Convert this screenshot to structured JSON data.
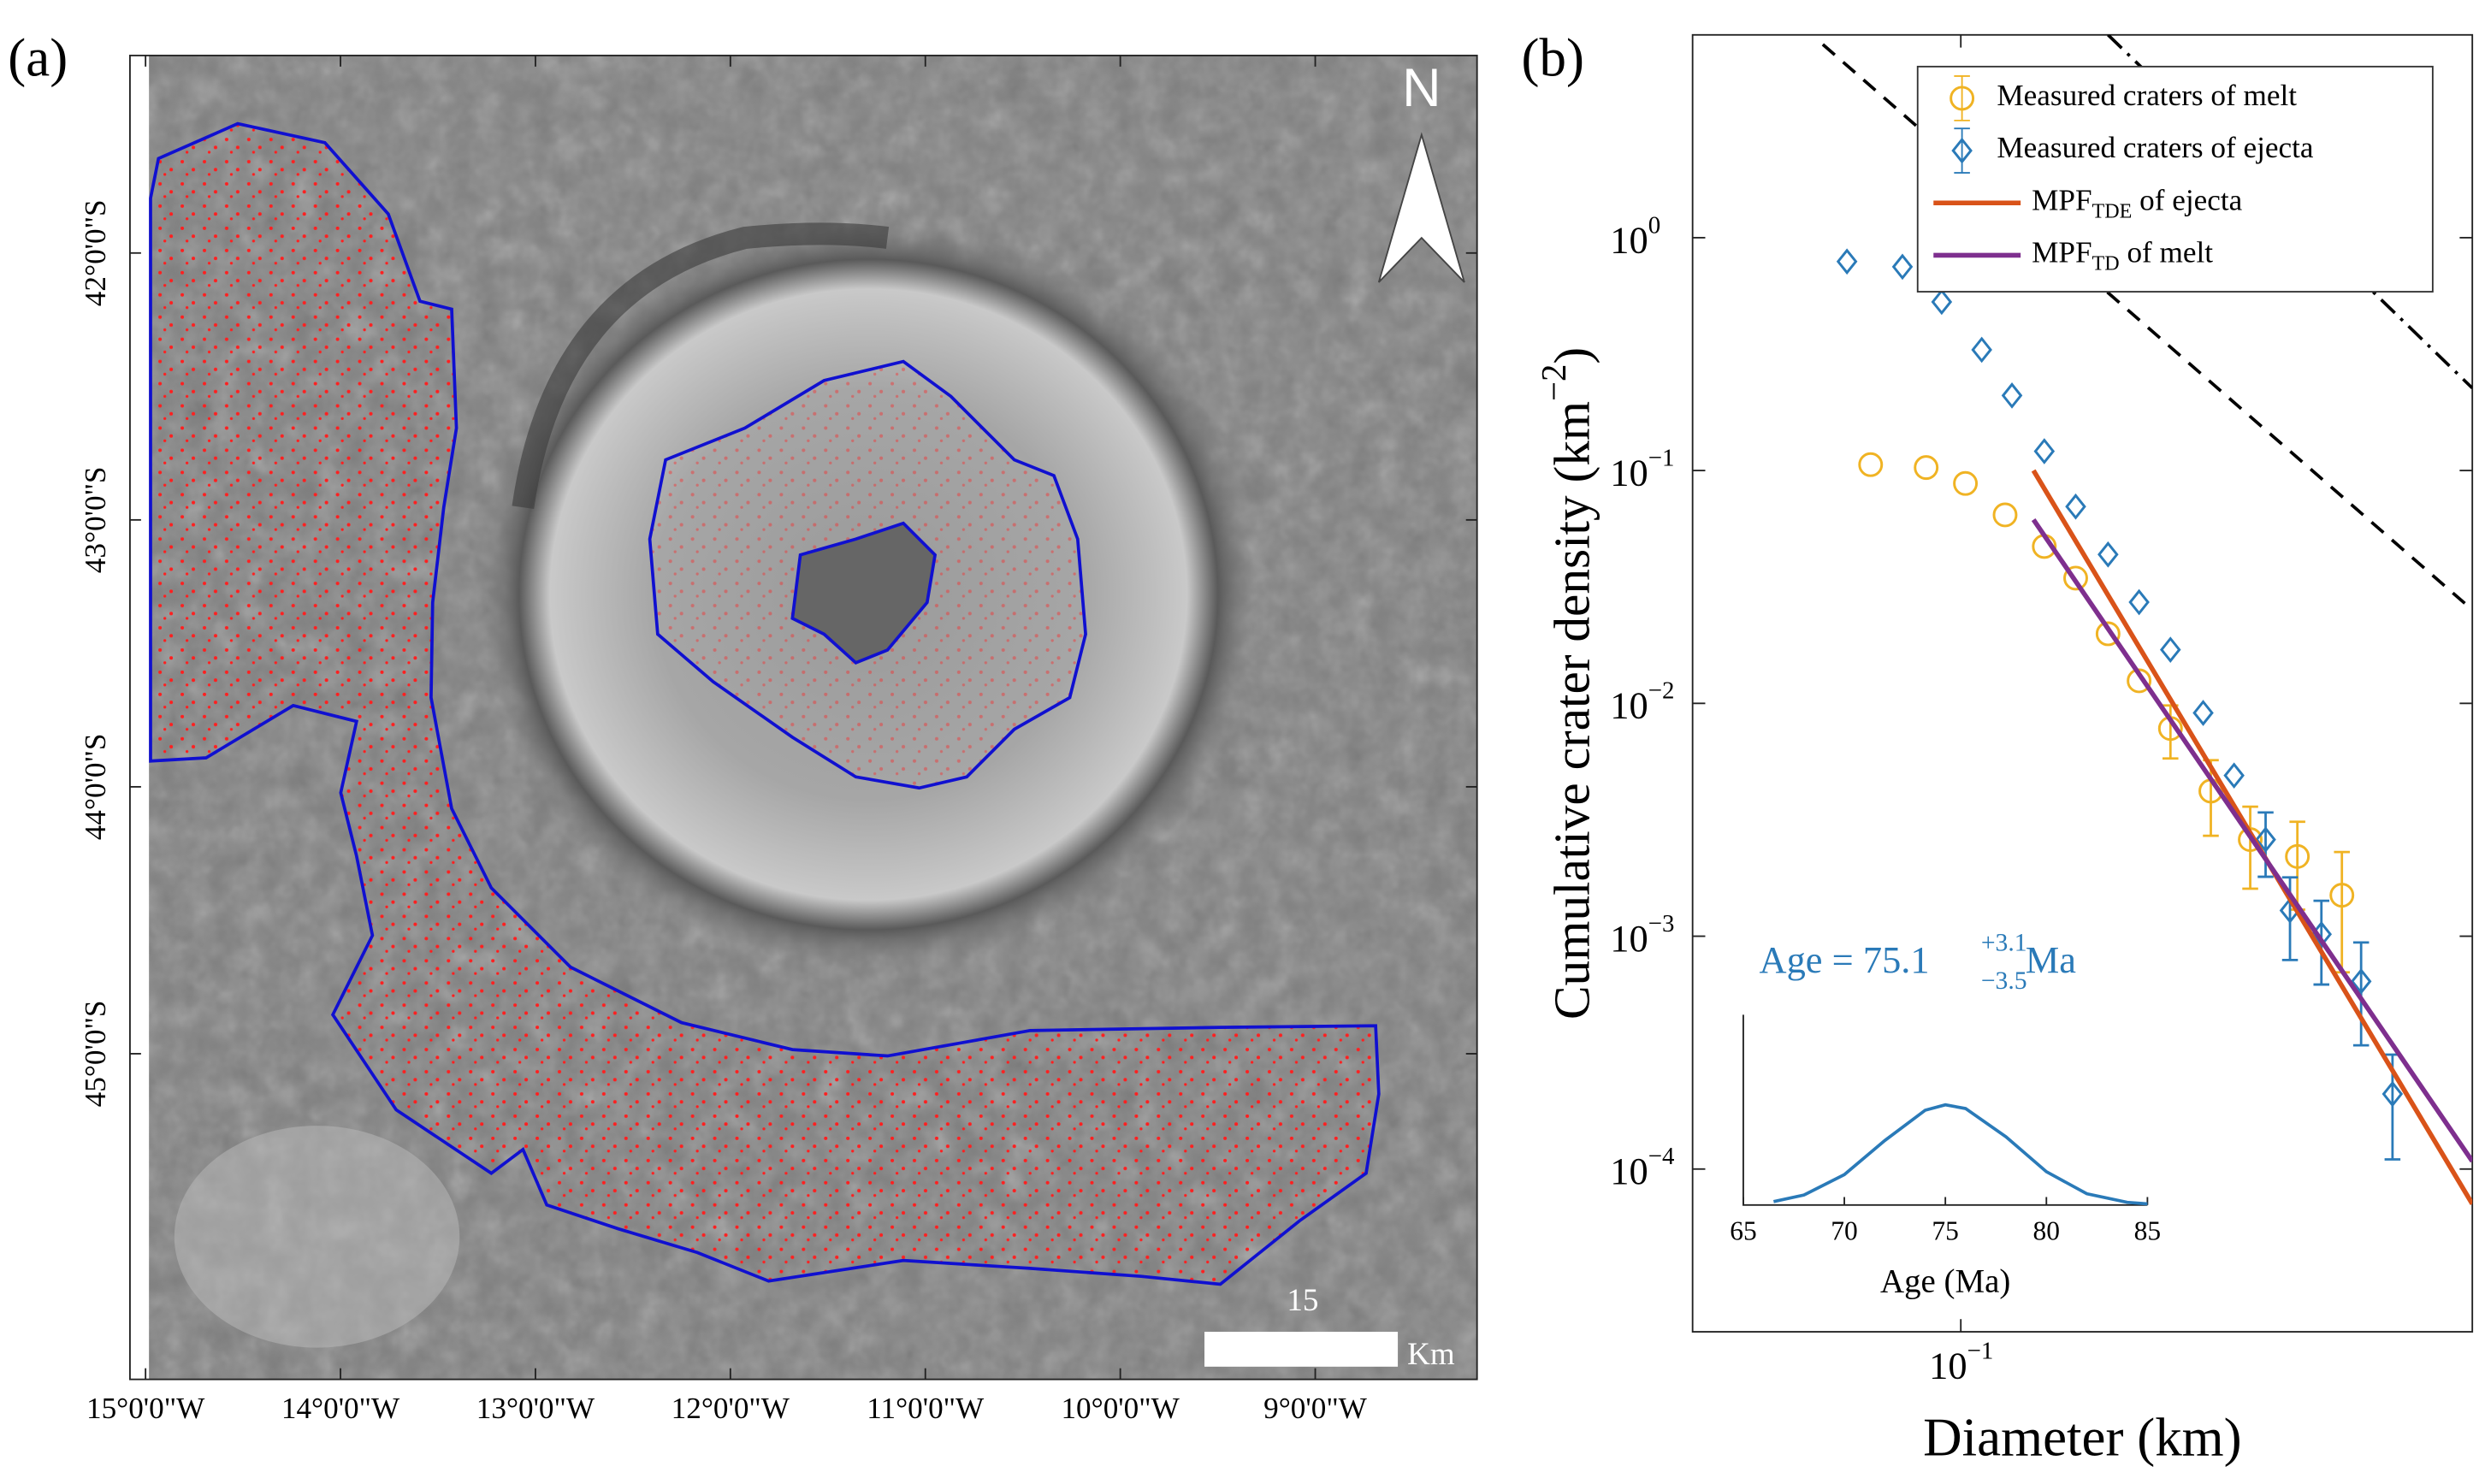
{
  "panel_labels": [
    "(a)",
    "(b)"
  ],
  "map": {
    "xlim": [
      -15.08,
      -8.17
    ],
    "ylim": [
      -46.22,
      -41.26
    ],
    "xticks": [
      {
        "value": -15,
        "label": "15°0'0\"W"
      },
      {
        "value": -14,
        "label": "14°0'0\"W"
      },
      {
        "value": -13,
        "label": "13°0'0\"W"
      },
      {
        "value": -12,
        "label": "12°0'0\"W"
      },
      {
        "value": -11,
        "label": "11°0'0\"W"
      },
      {
        "value": -10,
        "label": "10°0'0\"W"
      },
      {
        "value": -9,
        "label": "9°0'0\"W"
      }
    ],
    "yticks": [
      {
        "value": -42,
        "label": "42°0'0\"S"
      },
      {
        "value": -43,
        "label": "43°0'0\"S"
      },
      {
        "value": -44,
        "label": "44°0'0\"S"
      },
      {
        "value": -45,
        "label": "45°0'0\"S"
      }
    ],
    "north": "N",
    "scale_label": "15",
    "scale_unit": "Km"
  },
  "chart_data": {
    "type": "scatter",
    "xscale": "log",
    "yscale": "log",
    "xlabel": "Diameter (km)",
    "ylabel": {
      "text": "Cumulative crater density (km",
      "superscript": "−2",
      "end": ")"
    },
    "xlim": [
      0.042,
      0.523
    ],
    "ylim": [
      2e-05,
      7.43
    ],
    "xticks": [
      {
        "value": 0.1,
        "label": "10",
        "superscript": "−1"
      }
    ],
    "yticks": [
      {
        "value": 1,
        "label": "10",
        "superscript": "0"
      },
      {
        "value": 0.1,
        "label": "10",
        "superscript": "−1"
      },
      {
        "value": 0.01,
        "label": "10",
        "superscript": "−2"
      },
      {
        "value": 0.001,
        "label": "10",
        "superscript": "−3"
      },
      {
        "value": 0.0001,
        "label": "10",
        "superscript": "−4"
      }
    ],
    "legend": "upper right",
    "series": [
      {
        "name": "Measured craters of melt",
        "color": "#f0b323",
        "marker": "circle",
        "x": [
          0.0747,
          0.0894,
          0.1015,
          0.1154,
          0.131,
          0.145,
          0.161,
          0.178,
          0.197,
          0.2245,
          0.255,
          0.297,
          0.343
        ],
        "values": [
          0.106,
          0.103,
          0.088,
          0.0645,
          0.0472,
          0.0345,
          0.0199,
          0.0125,
          0.0078,
          0.0042,
          0.0026,
          0.0022,
          0.0015
        ],
        "errors": [
          null,
          null,
          null,
          null,
          null,
          null,
          null,
          null,
          0.002,
          0.0015,
          0.001,
          0.0009,
          0.0008
        ]
      },
      {
        "name": "Measured craters of ejecta",
        "color": "#2a7ab8",
        "marker": "diamond",
        "x": [
          0.0692,
          0.0828,
          0.094,
          0.107,
          0.118,
          0.131,
          0.145,
          0.161,
          0.178,
          0.197,
          0.219,
          0.242,
          0.268,
          0.29,
          0.321,
          0.365,
          0.404
        ],
        "values": [
          0.79,
          0.75,
          0.53,
          0.33,
          0.21,
          0.121,
          0.07,
          0.0436,
          0.0272,
          0.017,
          0.0091,
          0.0049,
          0.0026,
          0.00129,
          0.00102,
          0.00064,
          0.00021
        ],
        "errors": [
          null,
          null,
          null,
          null,
          null,
          null,
          null,
          null,
          null,
          null,
          null,
          null,
          0.0008,
          0.0005,
          0.0004,
          0.0003,
          0.0001
        ]
      },
      {
        "name": "MPF",
        "name_subscript": "TDE",
        "name_suffix": " of ejecta",
        "color": "#d95319",
        "marker": "line",
        "x": [
          0.1265,
          0.523
        ],
        "values": [
          0.1,
          7.08e-05
        ]
      },
      {
        "name": "MPF",
        "name_subscript": "TD",
        "name_suffix": " of melt",
        "color": "#7e2f8e",
        "marker": "line",
        "x": [
          0.1265,
          0.523
        ],
        "values": [
          0.0615,
          0.000108
        ]
      },
      {
        "color": "#000000",
        "marker": "dashed",
        "x": [
          0.064,
          0.523
        ],
        "values": [
          6.76,
          0.0252
        ]
      },
      {
        "color": "#000000",
        "marker": "dashdot",
        "x": [
          0.161,
          0.523
        ],
        "values": [
          7.43,
          0.226
        ]
      }
    ],
    "annotation": {
      "text": "Age = 75.1",
      "superscript": "+3.1",
      "subscript": "−3.5",
      "suffix": " Ma",
      "color": "#2a7ab8"
    },
    "inset": {
      "type": "line",
      "xlabel": "Age (Ma)",
      "xlim": [
        65,
        85
      ],
      "ylim": [
        0,
        1.9
      ],
      "xticks": [
        65,
        70,
        75,
        80,
        85
      ],
      "color": "#2a7ab8",
      "x": [
        66.5,
        68,
        70,
        72,
        74,
        75,
        76,
        78,
        80,
        82,
        84,
        85
      ],
      "values": [
        0.034,
        0.099,
        0.303,
        0.643,
        0.946,
        1.0,
        0.963,
        0.68,
        0.332,
        0.112,
        0.026,
        0.011
      ]
    }
  }
}
